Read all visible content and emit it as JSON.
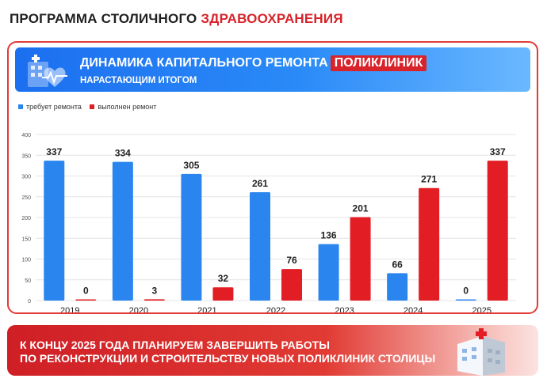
{
  "page_title": {
    "part1": "ПРОГРАММА СТОЛИЧНОГО",
    "part2": "ЗДРАВООХРАНЕНИЯ"
  },
  "banner": {
    "title_main": "ДИНАМИКА КАПИТАЛЬНОГО РЕМОНТА",
    "title_highlight": "ПОЛИКЛИНИК",
    "subtitle": "НАРАСТАЮЩИМ ИТОГОМ"
  },
  "bottom": {
    "line1": "К КОНЦУ 2025 ГОДА ПЛАНИРУЕМ ЗАВЕРШИТЬ РАБОТЫ",
    "line2": "ПО РЕКОНСТРУКЦИИ И СТРОИТЕЛЬСТВУ НОВЫХ ПОЛИКЛИНИК СТОЛИЦЫ"
  },
  "colors": {
    "blue": "#2a86ee",
    "red": "#e21d24",
    "accent_red": "#d8232a"
  },
  "icons": {
    "banner": "medical-building-heart-icon",
    "bottom": "hospital-building-icon"
  },
  "chart_data": {
    "type": "bar",
    "categories": [
      "2019",
      "2020",
      "2021",
      "2022",
      "2023",
      "2024",
      "2025"
    ],
    "series": [
      {
        "name": "требует ремонта",
        "color": "#2a86ee",
        "values": [
          337,
          334,
          305,
          261,
          136,
          66,
          0
        ]
      },
      {
        "name": "выполнен ремонт",
        "color": "#e21d24",
        "values": [
          0,
          3,
          32,
          76,
          201,
          271,
          337
        ]
      }
    ],
    "yticks": [
      0,
      50,
      100,
      150,
      200,
      250,
      300,
      350,
      400
    ],
    "ylim": [
      0,
      400
    ],
    "grid": true,
    "legend_position": "top-left"
  }
}
